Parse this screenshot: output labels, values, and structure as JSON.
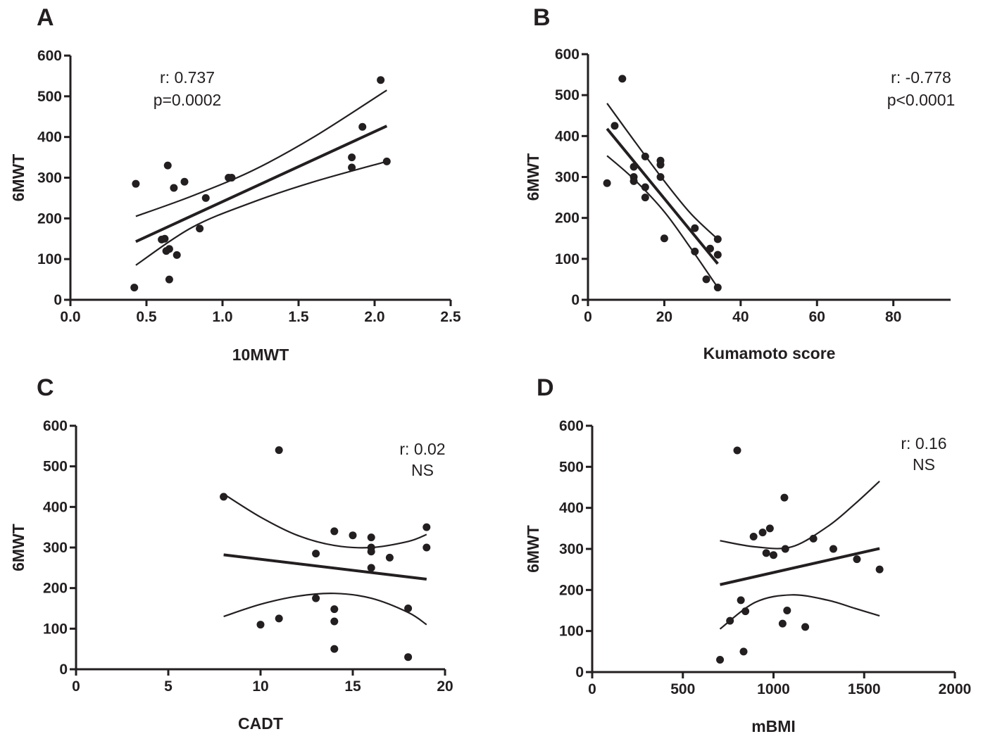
{
  "chart_data": [
    {
      "type": "scatter",
      "panel": "A",
      "xlabel": "10MWT",
      "ylabel": "6MWT",
      "xlim": [
        0,
        2.5
      ],
      "ylim": [
        0,
        600
      ],
      "xticks": [
        0,
        0.5,
        1,
        1.5,
        2,
        2.5
      ],
      "xtick_labels": [
        "0.0",
        "0.5",
        "1.0",
        "1.5",
        "2.0",
        "2.5"
      ],
      "yticks": [
        0,
        100,
        200,
        300,
        400,
        500,
        600
      ],
      "ytick_labels": [
        "0",
        "100",
        "200",
        "300",
        "400",
        "500",
        "600"
      ],
      "annotations": [
        "r: 0.737",
        "p=0.0002"
      ],
      "points": [
        [
          0.42,
          30
        ],
        [
          0.43,
          285
        ],
        [
          0.6,
          148
        ],
        [
          0.62,
          150
        ],
        [
          0.63,
          120
        ],
        [
          0.64,
          330
        ],
        [
          0.65,
          125
        ],
        [
          0.65,
          50
        ],
        [
          0.68,
          275
        ],
        [
          0.7,
          110
        ],
        [
          0.75,
          290
        ],
        [
          0.85,
          175
        ],
        [
          0.89,
          250
        ],
        [
          1.04,
          300
        ],
        [
          1.06,
          300
        ],
        [
          1.85,
          350
        ],
        [
          1.85,
          325
        ],
        [
          1.92,
          425
        ],
        [
          2.04,
          540
        ],
        [
          2.08,
          340
        ]
      ],
      "regression": {
        "x": [
          0.43,
          2.08
        ],
        "y": [
          143,
          427
        ]
      },
      "ci_upper": {
        "x": [
          0.43,
          0.8,
          1.2,
          1.6,
          2.08
        ],
        "y": [
          205,
          255,
          318,
          400,
          515
        ]
      },
      "ci_lower": {
        "x": [
          0.43,
          0.8,
          1.2,
          1.6,
          2.08
        ],
        "y": [
          85,
          178,
          240,
          290,
          340
        ]
      }
    },
    {
      "type": "scatter",
      "panel": "B",
      "xlabel": "Kumamoto score",
      "ylabel": "6MWT",
      "xlim": [
        0,
        95
      ],
      "ylim": [
        0,
        600
      ],
      "xticks": [
        0,
        20,
        40,
        60,
        80
      ],
      "xtick_labels": [
        "0",
        "20",
        "40",
        "60",
        "80"
      ],
      "yticks": [
        0,
        100,
        200,
        300,
        400,
        500,
        600
      ],
      "ytick_labels": [
        "0",
        "100",
        "200",
        "300",
        "400",
        "500",
        "600"
      ],
      "annotations": [
        "r: -0.778",
        "p<0.0001"
      ],
      "points": [
        [
          5,
          285
        ],
        [
          7,
          425
        ],
        [
          9,
          540
        ],
        [
          12,
          325
        ],
        [
          12,
          300
        ],
        [
          12,
          290
        ],
        [
          15,
          350
        ],
        [
          15,
          275
        ],
        [
          15,
          250
        ],
        [
          19,
          340
        ],
        [
          19,
          330
        ],
        [
          19,
          300
        ],
        [
          20,
          150
        ],
        [
          28,
          175
        ],
        [
          28,
          118
        ],
        [
          31,
          50
        ],
        [
          32,
          125
        ],
        [
          34,
          148
        ],
        [
          34,
          110
        ],
        [
          34,
          30
        ]
      ],
      "regression": {
        "x": [
          5,
          34
        ],
        "y": [
          418,
          88
        ]
      },
      "ci_upper": {
        "x": [
          5,
          12,
          20,
          27,
          34
        ],
        "y": [
          480,
          390,
          290,
          210,
          148
        ]
      },
      "ci_lower": {
        "x": [
          5,
          12,
          20,
          27,
          34
        ],
        "y": [
          352,
          295,
          215,
          125,
          30
        ]
      }
    },
    {
      "type": "scatter",
      "panel": "C",
      "xlabel": "CADT",
      "ylabel": "6MWT",
      "xlim": [
        0,
        20
      ],
      "ylim": [
        0,
        600
      ],
      "xticks": [
        0,
        5,
        10,
        15,
        20
      ],
      "xtick_labels": [
        "0",
        "5",
        "10",
        "15",
        "20"
      ],
      "yticks": [
        0,
        100,
        200,
        300,
        400,
        500,
        600
      ],
      "ytick_labels": [
        "0",
        "100",
        "200",
        "300",
        "400",
        "500",
        "600"
      ],
      "annotations": [
        "r: 0.02",
        "NS"
      ],
      "points": [
        [
          8,
          425
        ],
        [
          10,
          110
        ],
        [
          11,
          540
        ],
        [
          11,
          125
        ],
        [
          13,
          285
        ],
        [
          13,
          175
        ],
        [
          14,
          340
        ],
        [
          14,
          148
        ],
        [
          14,
          118
        ],
        [
          14,
          50
        ],
        [
          15,
          330
        ],
        [
          16,
          325
        ],
        [
          16,
          300
        ],
        [
          16,
          290
        ],
        [
          16,
          250
        ],
        [
          17,
          275
        ],
        [
          18,
          150
        ],
        [
          18,
          30
        ],
        [
          19,
          350
        ],
        [
          19,
          300
        ]
      ],
      "regression": {
        "x": [
          8,
          19
        ],
        "y": [
          282,
          222
        ]
      },
      "ci_upper": {
        "x": [
          8,
          10,
          12,
          14,
          16,
          18,
          19
        ],
        "y": [
          432,
          375,
          330,
          305,
          300,
          315,
          332
        ]
      },
      "ci_lower": {
        "x": [
          8,
          10,
          12,
          14,
          16,
          18,
          19
        ],
        "y": [
          130,
          160,
          180,
          187,
          175,
          140,
          110
        ]
      }
    },
    {
      "type": "scatter",
      "panel": "D",
      "xlabel": "mBMI",
      "ylabel": "6MWT",
      "xlim": [
        0,
        2000
      ],
      "ylim": [
        0,
        600
      ],
      "xticks": [
        0,
        500,
        1000,
        1500,
        2000
      ],
      "xtick_labels": [
        "0",
        "500",
        "1000",
        "1500",
        "2000"
      ],
      "yticks": [
        0,
        100,
        200,
        300,
        400,
        500,
        600
      ],
      "ytick_labels": [
        "0",
        "100",
        "200",
        "300",
        "400",
        "500",
        "600"
      ],
      "annotations": [
        "r: 0.16",
        "NS"
      ],
      "points": [
        [
          705,
          30
        ],
        [
          760,
          125
        ],
        [
          800,
          540
        ],
        [
          820,
          175
        ],
        [
          835,
          50
        ],
        [
          845,
          148
        ],
        [
          890,
          330
        ],
        [
          940,
          340
        ],
        [
          960,
          290
        ],
        [
          980,
          350
        ],
        [
          1000,
          285
        ],
        [
          1050,
          118
        ],
        [
          1060,
          425
        ],
        [
          1065,
          300
        ],
        [
          1075,
          150
        ],
        [
          1175,
          110
        ],
        [
          1220,
          325
        ],
        [
          1330,
          300
        ],
        [
          1460,
          275
        ],
        [
          1585,
          250
        ]
      ],
      "regression": {
        "x": [
          705,
          1585
        ],
        "y": [
          213,
          301
        ]
      },
      "ci_upper": {
        "x": [
          705,
          900,
          1100,
          1300,
          1450,
          1585
        ],
        "y": [
          320,
          305,
          305,
          355,
          410,
          465
        ]
      },
      "ci_lower": {
        "x": [
          705,
          900,
          1100,
          1300,
          1450,
          1585
        ],
        "y": [
          105,
          170,
          188,
          175,
          155,
          137
        ]
      }
    }
  ]
}
